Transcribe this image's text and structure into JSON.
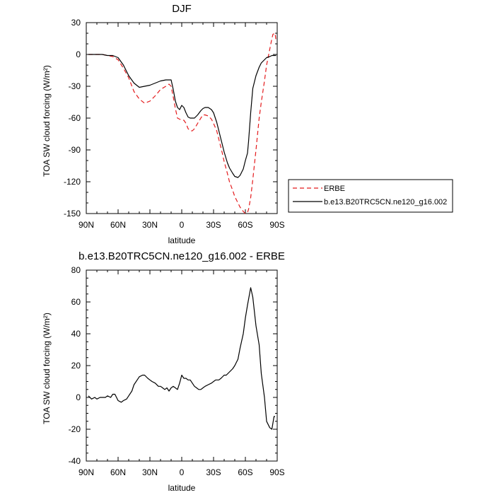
{
  "chart_data": [
    {
      "type": "line",
      "title": "DJF",
      "xlabel": "latitude",
      "ylabel": "TOA SW cloud forcing (W/m²)",
      "xlim": [
        90,
        -90
      ],
      "ylim": [
        -150,
        30
      ],
      "x_ticks": [
        90,
        60,
        30,
        0,
        -30,
        -60,
        -90
      ],
      "x_tick_labels": [
        "90N",
        "60N",
        "30N",
        "0",
        "30S",
        "60S",
        "90S"
      ],
      "y_ticks": [
        -150,
        -120,
        -90,
        -60,
        -30,
        0,
        30
      ],
      "grid": false,
      "legend_position": "right-outside",
      "series": [
        {
          "name": "ERBE",
          "color": "#e41a1c",
          "style": "dashed",
          "x": [
            88,
            85,
            80,
            75,
            70,
            65,
            60,
            55,
            50,
            45,
            40,
            35,
            30,
            25,
            20,
            15,
            12,
            10,
            8,
            6,
            4,
            2,
            0,
            -2,
            -4,
            -6,
            -8,
            -10,
            -12,
            -15,
            -18,
            -20,
            -22,
            -25,
            -28,
            -30,
            -33,
            -35,
            -38,
            -40,
            -43,
            -45,
            -48,
            -50,
            -53,
            -55,
            -58,
            -60,
            -62,
            -63,
            -65,
            -67,
            -70,
            -73,
            -75,
            -78,
            -80,
            -83,
            -85,
            -86,
            -88,
            -89
          ],
          "values": [
            0,
            0,
            0,
            0,
            -1,
            -2,
            -5,
            -13,
            -22,
            -35,
            -42,
            -46,
            -44,
            -39,
            -33,
            -30,
            -28,
            -30,
            -40,
            -51,
            -60,
            -61,
            -62,
            -62,
            -65,
            -70,
            -72,
            -72,
            -70,
            -65,
            -60,
            -57,
            -57,
            -58,
            -61,
            -65,
            -72,
            -80,
            -92,
            -101,
            -112,
            -120,
            -128,
            -134,
            -140,
            -144,
            -148,
            -150,
            -149,
            -146,
            -135,
            -118,
            -90,
            -60,
            -45,
            -25,
            -10,
            5,
            15,
            19,
            20,
            12
          ]
        },
        {
          "name": "b.e13.B20TRC5CN.ne120_g16.002",
          "color": "#000000",
          "style": "solid",
          "x": [
            88,
            85,
            80,
            75,
            70,
            65,
            60,
            55,
            50,
            45,
            40,
            35,
            30,
            25,
            20,
            15,
            12,
            10,
            8,
            6,
            4,
            2,
            0,
            -2,
            -4,
            -6,
            -8,
            -10,
            -12,
            -15,
            -18,
            -20,
            -22,
            -25,
            -28,
            -30,
            -33,
            -35,
            -38,
            -40,
            -43,
            -45,
            -48,
            -50,
            -53,
            -55,
            -58,
            -60,
            -62,
            -63,
            -65,
            -67,
            -70,
            -73,
            -75,
            -78,
            -80,
            -83,
            -85,
            -86,
            -88,
            -89
          ],
          "values": [
            0,
            0,
            0,
            0,
            -1,
            -1,
            -3,
            -10,
            -20,
            -27,
            -31,
            -30,
            -29,
            -27,
            -25,
            -24,
            -24,
            -24,
            -33,
            -44,
            -50,
            -52,
            -48,
            -50,
            -55,
            -59,
            -60,
            -60,
            -60,
            -57,
            -53,
            -51,
            -50,
            -50,
            -52,
            -55,
            -64,
            -72,
            -84,
            -92,
            -102,
            -107,
            -112,
            -115,
            -116,
            -114,
            -108,
            -100,
            -93,
            -82,
            -55,
            -32,
            -20,
            -12,
            -8,
            -5,
            -3,
            -2,
            -1,
            -1,
            -1,
            -1
          ]
        }
      ]
    },
    {
      "type": "line",
      "title": "b.e13.B20TRC5CN.ne120_g16.002 - ERBE",
      "xlabel": "latitude",
      "ylabel": "TOA SW cloud forcing (W/m²)",
      "xlim": [
        90,
        -90
      ],
      "ylim": [
        -40,
        80
      ],
      "x_ticks": [
        90,
        60,
        30,
        0,
        -30,
        -60,
        -90
      ],
      "x_tick_labels": [
        "90N",
        "60N",
        "30N",
        "0",
        "30S",
        "60S",
        "90S"
      ],
      "y_ticks": [
        -40,
        -20,
        0,
        20,
        40,
        60,
        80
      ],
      "grid": false,
      "series": [
        {
          "color": "#000000",
          "style": "solid",
          "x": [
            88,
            85,
            82,
            80,
            77,
            75,
            72,
            70,
            67,
            65,
            63,
            60,
            57,
            55,
            52,
            50,
            47,
            45,
            42,
            40,
            37,
            35,
            32,
            30,
            28,
            25,
            22,
            20,
            18,
            16,
            14,
            12,
            10,
            8,
            6,
            4,
            2,
            0,
            -2,
            -4,
            -6,
            -8,
            -10,
            -12,
            -14,
            -16,
            -18,
            -20,
            -22,
            -25,
            -28,
            -30,
            -32,
            -35,
            -37,
            -40,
            -42,
            -45,
            -48,
            -50,
            -53,
            -55,
            -58,
            -60,
            -62,
            -65,
            -67,
            -70,
            -73,
            -75,
            -78,
            -80,
            -83,
            -85,
            -87,
            -88
          ],
          "values": [
            1,
            -1,
            0,
            -1,
            0,
            0,
            0,
            1,
            0,
            2,
            2,
            -2,
            -3,
            -2,
            -1,
            1,
            4,
            8,
            11,
            13,
            14,
            14,
            12,
            11,
            10,
            9,
            7,
            7,
            6,
            5,
            6,
            4,
            6,
            7,
            6,
            5,
            9,
            14,
            12,
            12,
            11,
            11,
            9,
            7,
            6,
            5,
            5,
            6,
            7,
            8,
            9,
            10,
            11,
            11,
            12,
            14,
            14,
            16,
            18,
            20,
            24,
            31,
            40,
            50,
            58,
            69,
            63,
            45,
            33,
            15,
            0,
            -15,
            -19,
            -20,
            -12,
            -12
          ]
        }
      ]
    }
  ]
}
